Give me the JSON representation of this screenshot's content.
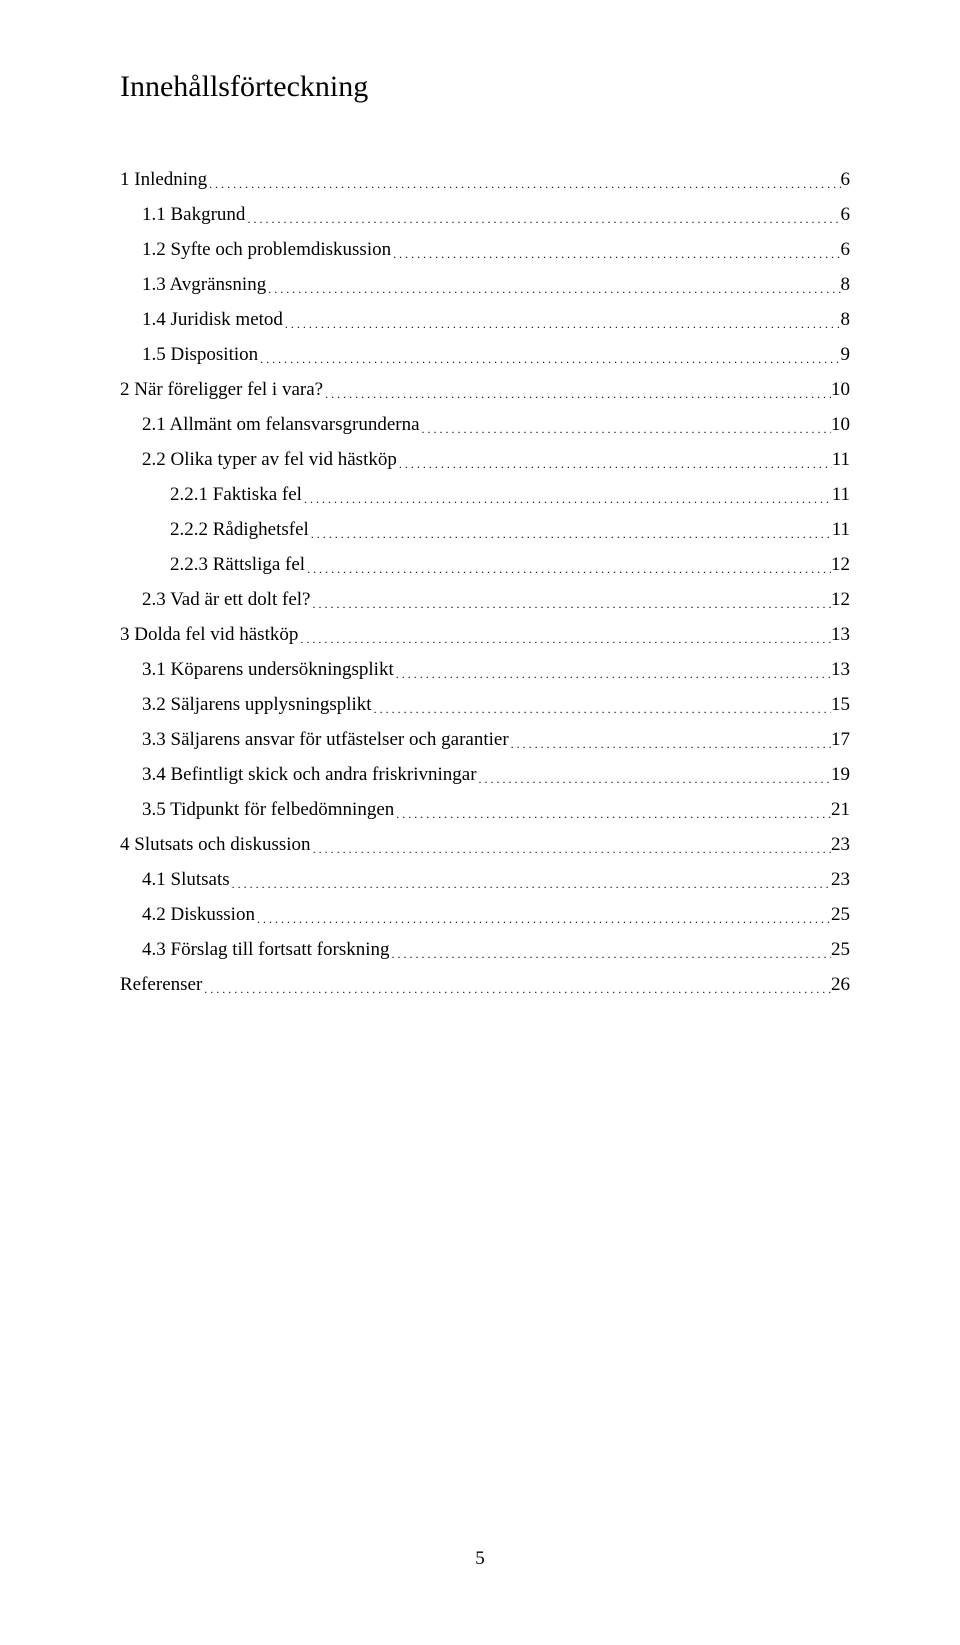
{
  "title": "Innehållsförteckning",
  "page_number": "5",
  "entries": [
    {
      "level": 0,
      "label": "1 Inledning",
      "page": "6"
    },
    {
      "level": 1,
      "label": "1.1 Bakgrund",
      "page": "6"
    },
    {
      "level": 1,
      "label": "1.2 Syfte och problemdiskussion",
      "page": "6"
    },
    {
      "level": 1,
      "label": "1.3 Avgränsning",
      "page": "8"
    },
    {
      "level": 1,
      "label": "1.4 Juridisk metod",
      "page": "8"
    },
    {
      "level": 1,
      "label": "1.5 Disposition",
      "page": "9"
    },
    {
      "level": 0,
      "label": "2 När föreligger fel i vara?",
      "page": "10"
    },
    {
      "level": 1,
      "label": "2.1 Allmänt om felansvarsgrunderna",
      "page": "10"
    },
    {
      "level": 1,
      "label": "2.2 Olika typer av fel vid hästköp",
      "page": "11"
    },
    {
      "level": 2,
      "label": "2.2.1 Faktiska fel",
      "page": "11"
    },
    {
      "level": 2,
      "label": "2.2.2 Rådighetsfel",
      "page": "11"
    },
    {
      "level": 2,
      "label": "2.2.3 Rättsliga fel",
      "page": "12"
    },
    {
      "level": 1,
      "label": "2.3 Vad är ett dolt fel?",
      "page": "12"
    },
    {
      "level": 0,
      "label": "3 Dolda fel vid hästköp",
      "page": "13"
    },
    {
      "level": 1,
      "label": "3.1 Köparens undersökningsplikt",
      "page": "13"
    },
    {
      "level": 1,
      "label": "3.2 Säljarens upplysningsplikt",
      "page": "15"
    },
    {
      "level": 1,
      "label": "3.3 Säljarens ansvar för utfästelser och garantier",
      "page": "17"
    },
    {
      "level": 1,
      "label": "3.4 Befintligt skick och andra friskrivningar",
      "page": "19"
    },
    {
      "level": 1,
      "label": "3.5 Tidpunkt för felbedömningen",
      "page": "21"
    },
    {
      "level": 0,
      "label": "4 Slutsats och diskussion",
      "page": "23"
    },
    {
      "level": 1,
      "label": "4.1 Slutsats",
      "page": "23"
    },
    {
      "level": 1,
      "label": "4.2 Diskussion",
      "page": "25"
    },
    {
      "level": 1,
      "label": "4.3 Förslag till fortsatt forskning",
      "page": "25"
    },
    {
      "level": 0,
      "label": "Referenser",
      "page": "26"
    }
  ]
}
